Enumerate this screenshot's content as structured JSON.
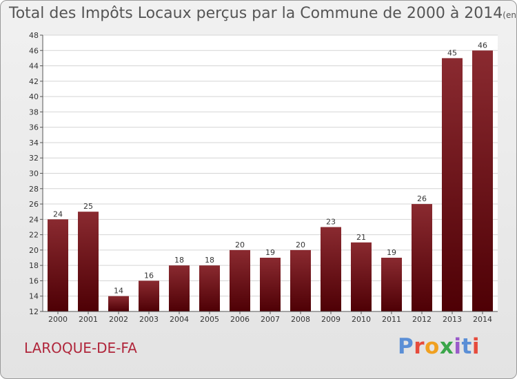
{
  "title": "Total des Impôts Locaux perçus par la Commune de 2000 à 2014",
  "unit_label": "(en milliers d'€)",
  "commune": "LAROQUE-DE-FA",
  "logo_text": "Proxiti",
  "colors": {
    "bar_top": "#8a2a30",
    "bar_bottom": "#4e0005",
    "commune_text": "#b0263b"
  },
  "chart_data": {
    "type": "bar",
    "title": "Total des Impôts Locaux perçus par la Commune de 2000 à 2014",
    "xlabel": "",
    "ylabel": "",
    "ylim": [
      12,
      48
    ],
    "yticks": [
      12,
      14,
      16,
      18,
      20,
      22,
      24,
      26,
      28,
      30,
      32,
      34,
      36,
      38,
      40,
      42,
      44,
      46,
      48
    ],
    "grid": true,
    "categories": [
      "2000",
      "2001",
      "2002",
      "2003",
      "2004",
      "2005",
      "2006",
      "2007",
      "2008",
      "2009",
      "2010",
      "2011",
      "2012",
      "2013",
      "2014"
    ],
    "values": [
      24,
      25,
      14,
      16,
      18,
      18,
      20,
      19,
      20,
      23,
      21,
      19,
      26,
      45,
      46
    ]
  }
}
